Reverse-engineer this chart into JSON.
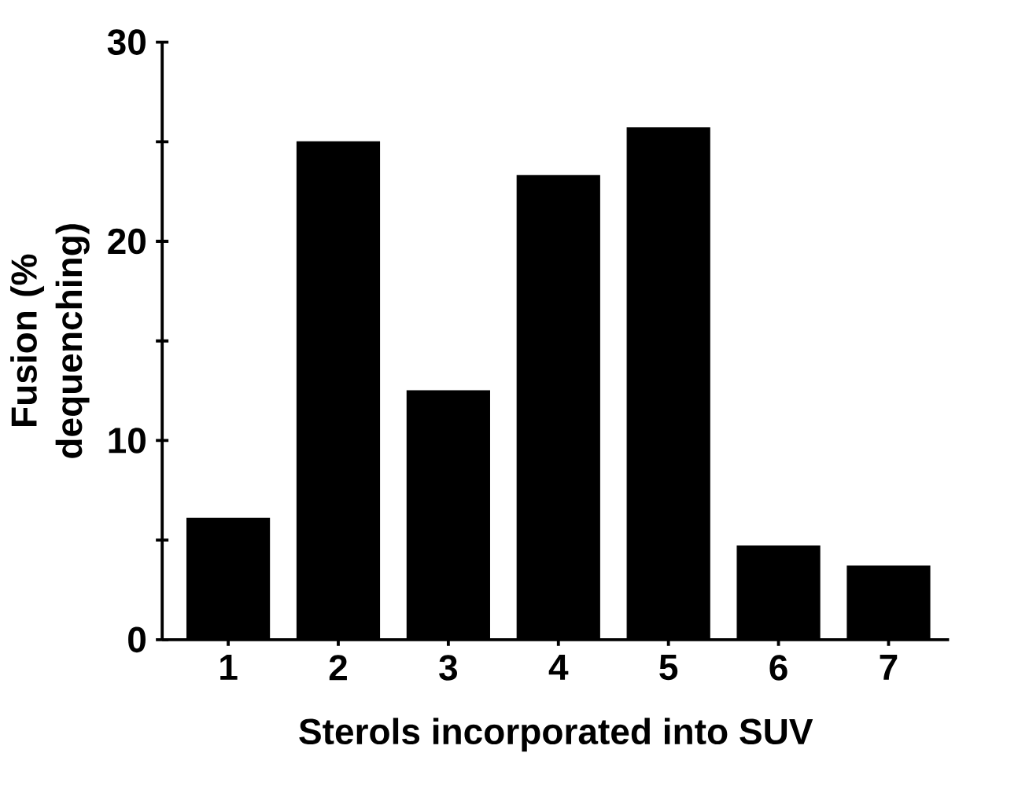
{
  "chart_data": {
    "type": "bar",
    "xlabel": "Sterols incorporated into SUV",
    "ylabel": "Fusion (% dequenching)",
    "categories": [
      "1",
      "2",
      "3",
      "4",
      "5",
      "6",
      "7"
    ],
    "values": [
      6.1,
      25.0,
      12.5,
      23.3,
      25.7,
      4.7,
      3.7
    ],
    "color": "#000000",
    "ylim": [
      0,
      30
    ],
    "yticks": [
      0,
      {
        "value": 5,
        "label": null
      },
      10,
      {
        "value": 15,
        "label": null
      },
      20,
      {
        "value": 25,
        "label": null
      },
      30
    ],
    "grid": false
  }
}
